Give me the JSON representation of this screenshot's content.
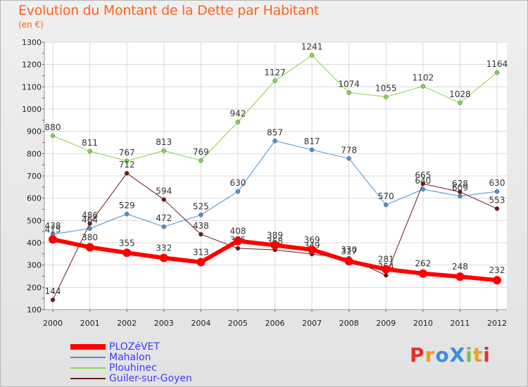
{
  "header": {
    "title": "Evolution du Montant de la Dette par Habitant",
    "subtitle": "(en €)"
  },
  "logo": {
    "text": "ProXiti",
    "letters": [
      {
        "char": "P",
        "color": "#e4312d"
      },
      {
        "char": "r",
        "color": "#f29c1f"
      },
      {
        "char": "o",
        "color": "#3b8de0"
      },
      {
        "char": "X",
        "color": "#3b8de0"
      },
      {
        "char": "i",
        "color": "#7bc142"
      },
      {
        "char": "t",
        "color": "#f29c1f"
      },
      {
        "char": "i",
        "color": "#e4312d"
      }
    ]
  },
  "chart_data": {
    "type": "line",
    "title": "Evolution du Montant de la Dette par Habitant",
    "subtitle": "(en €)",
    "xlabel": "",
    "ylabel": "",
    "categories": [
      "2000",
      "2001",
      "2002",
      "2003",
      "2004",
      "2005",
      "2006",
      "2007",
      "2008",
      "2009",
      "2010",
      "2011",
      "2012"
    ],
    "ylim": [
      100,
      1300
    ],
    "yticks": [
      100,
      200,
      300,
      400,
      500,
      600,
      700,
      800,
      900,
      1000,
      1100,
      1200,
      1300
    ],
    "grid": true,
    "legend_position": "bottom-left",
    "series": [
      {
        "name": "Mahalon",
        "color": "#4d90cf",
        "width": 1,
        "values": [
          438,
          464,
          529,
          472,
          525,
          630,
          857,
          817,
          778,
          570,
          640,
          609,
          630
        ]
      },
      {
        "name": "Plouhinec",
        "color": "#86d44a",
        "width": 1,
        "values": [
          880,
          811,
          767,
          813,
          769,
          942,
          1127,
          1241,
          1074,
          1055,
          1102,
          1028,
          1164
        ]
      },
      {
        "name": "Guiler-sur-Goyen",
        "color": "#6b1a1a",
        "width": 1,
        "values": [
          144,
          486,
          712,
          594,
          438,
          375,
          368,
          349,
          330,
          254,
          665,
          628,
          553
        ]
      },
      {
        "name": "PLOZéVET",
        "color": "#ff0000",
        "width": 6,
        "values": [
          415,
          380,
          355,
          332,
          313,
          408,
          389,
          369,
          317,
          281,
          262,
          248,
          232
        ]
      }
    ],
    "legend": [
      "PLOZéVET",
      "Mahalon",
      "Plouhinec",
      "Guiler-sur-Goyen"
    ]
  }
}
